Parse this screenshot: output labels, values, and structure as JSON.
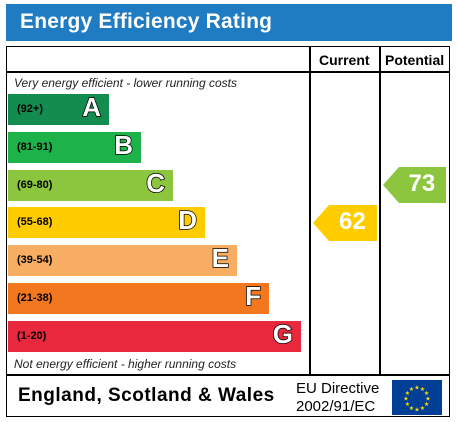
{
  "title": "Energy Efficiency Rating",
  "columns": {
    "current": "Current",
    "potential": "Potential"
  },
  "notes": {
    "top": "Very energy efficient - lower running costs",
    "bottom": "Not energy efficient - higher running costs"
  },
  "footer": {
    "country": "England, Scotland & Wales",
    "directive_line1": "EU Directive",
    "directive_line2": "2002/91/EC",
    "flag": "eu-flag-icon"
  },
  "chart_data": {
    "type": "table",
    "bands": [
      {
        "letter": "A",
        "range": "(92+)",
        "color": "#138c4f"
      },
      {
        "letter": "B",
        "range": "(81-91)",
        "color": "#1db34a"
      },
      {
        "letter": "C",
        "range": "(69-80)",
        "color": "#8cc63f"
      },
      {
        "letter": "D",
        "range": "(55-68)",
        "color": "#ffcc00"
      },
      {
        "letter": "E",
        "range": "(39-54)",
        "color": "#f7ae63"
      },
      {
        "letter": "F",
        "range": "(21-38)",
        "color": "#f2771f"
      },
      {
        "letter": "G",
        "range": "(1-20)",
        "color": "#e8283d"
      }
    ],
    "current": {
      "value": "62",
      "band": "D",
      "color": "#ffcc00"
    },
    "potential": {
      "value": "73",
      "band": "C",
      "color": "#8cc63f"
    }
  }
}
